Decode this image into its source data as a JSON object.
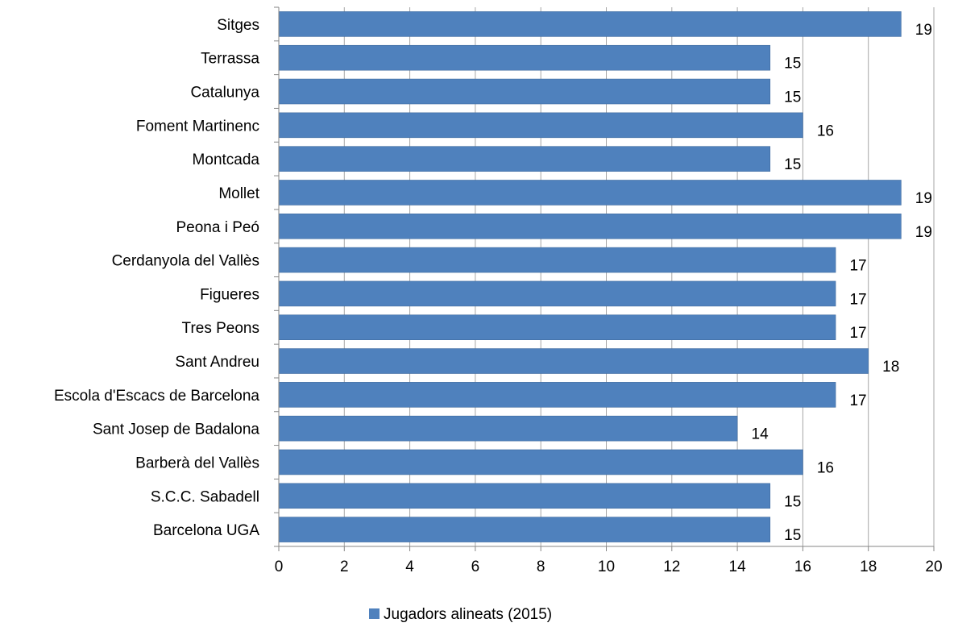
{
  "chart_data": {
    "type": "bar",
    "orientation": "horizontal",
    "categories": [
      "Sitges",
      "Terrassa",
      "Catalunya",
      "Foment Martinenc",
      "Montcada",
      "Mollet",
      "Peona i Peó",
      "Cerdanyola del Vallès",
      "Figueres",
      "Tres Peons",
      "Sant Andreu",
      "Escola d'Escacs de Barcelona",
      "Sant Josep de Badalona",
      "Barberà del Vallès",
      "S.C.C. Sabadell",
      "Barcelona UGA"
    ],
    "series": [
      {
        "name": "Jugadors  alineats (2015)",
        "values": [
          19,
          15,
          15,
          16,
          15,
          19,
          19,
          17,
          17,
          17,
          18,
          17,
          14,
          16,
          15,
          15
        ],
        "color": "#4F81BD"
      }
    ],
    "data_labels": [
      "19",
      "15",
      "15",
      "16",
      "15",
      "19",
      "19",
      "17",
      "17",
      "17",
      "18",
      "17",
      "14",
      "16",
      "15",
      "15"
    ],
    "x_ticks": [
      "0",
      "2",
      "4",
      "6",
      "8",
      "10",
      "12",
      "14",
      "16",
      "18",
      "20"
    ],
    "xlim": [
      0,
      20
    ],
    "xlabel": "",
    "ylabel": "",
    "title": "",
    "grid": true,
    "legend": {
      "position": "bottom",
      "entries": [
        "Jugadors  alineats (2015)"
      ]
    },
    "colors": {
      "bar": "#4F81BD",
      "bar_edge": "#3F6B9F",
      "grid": "#A6A6A6",
      "axis": "#868686"
    }
  }
}
